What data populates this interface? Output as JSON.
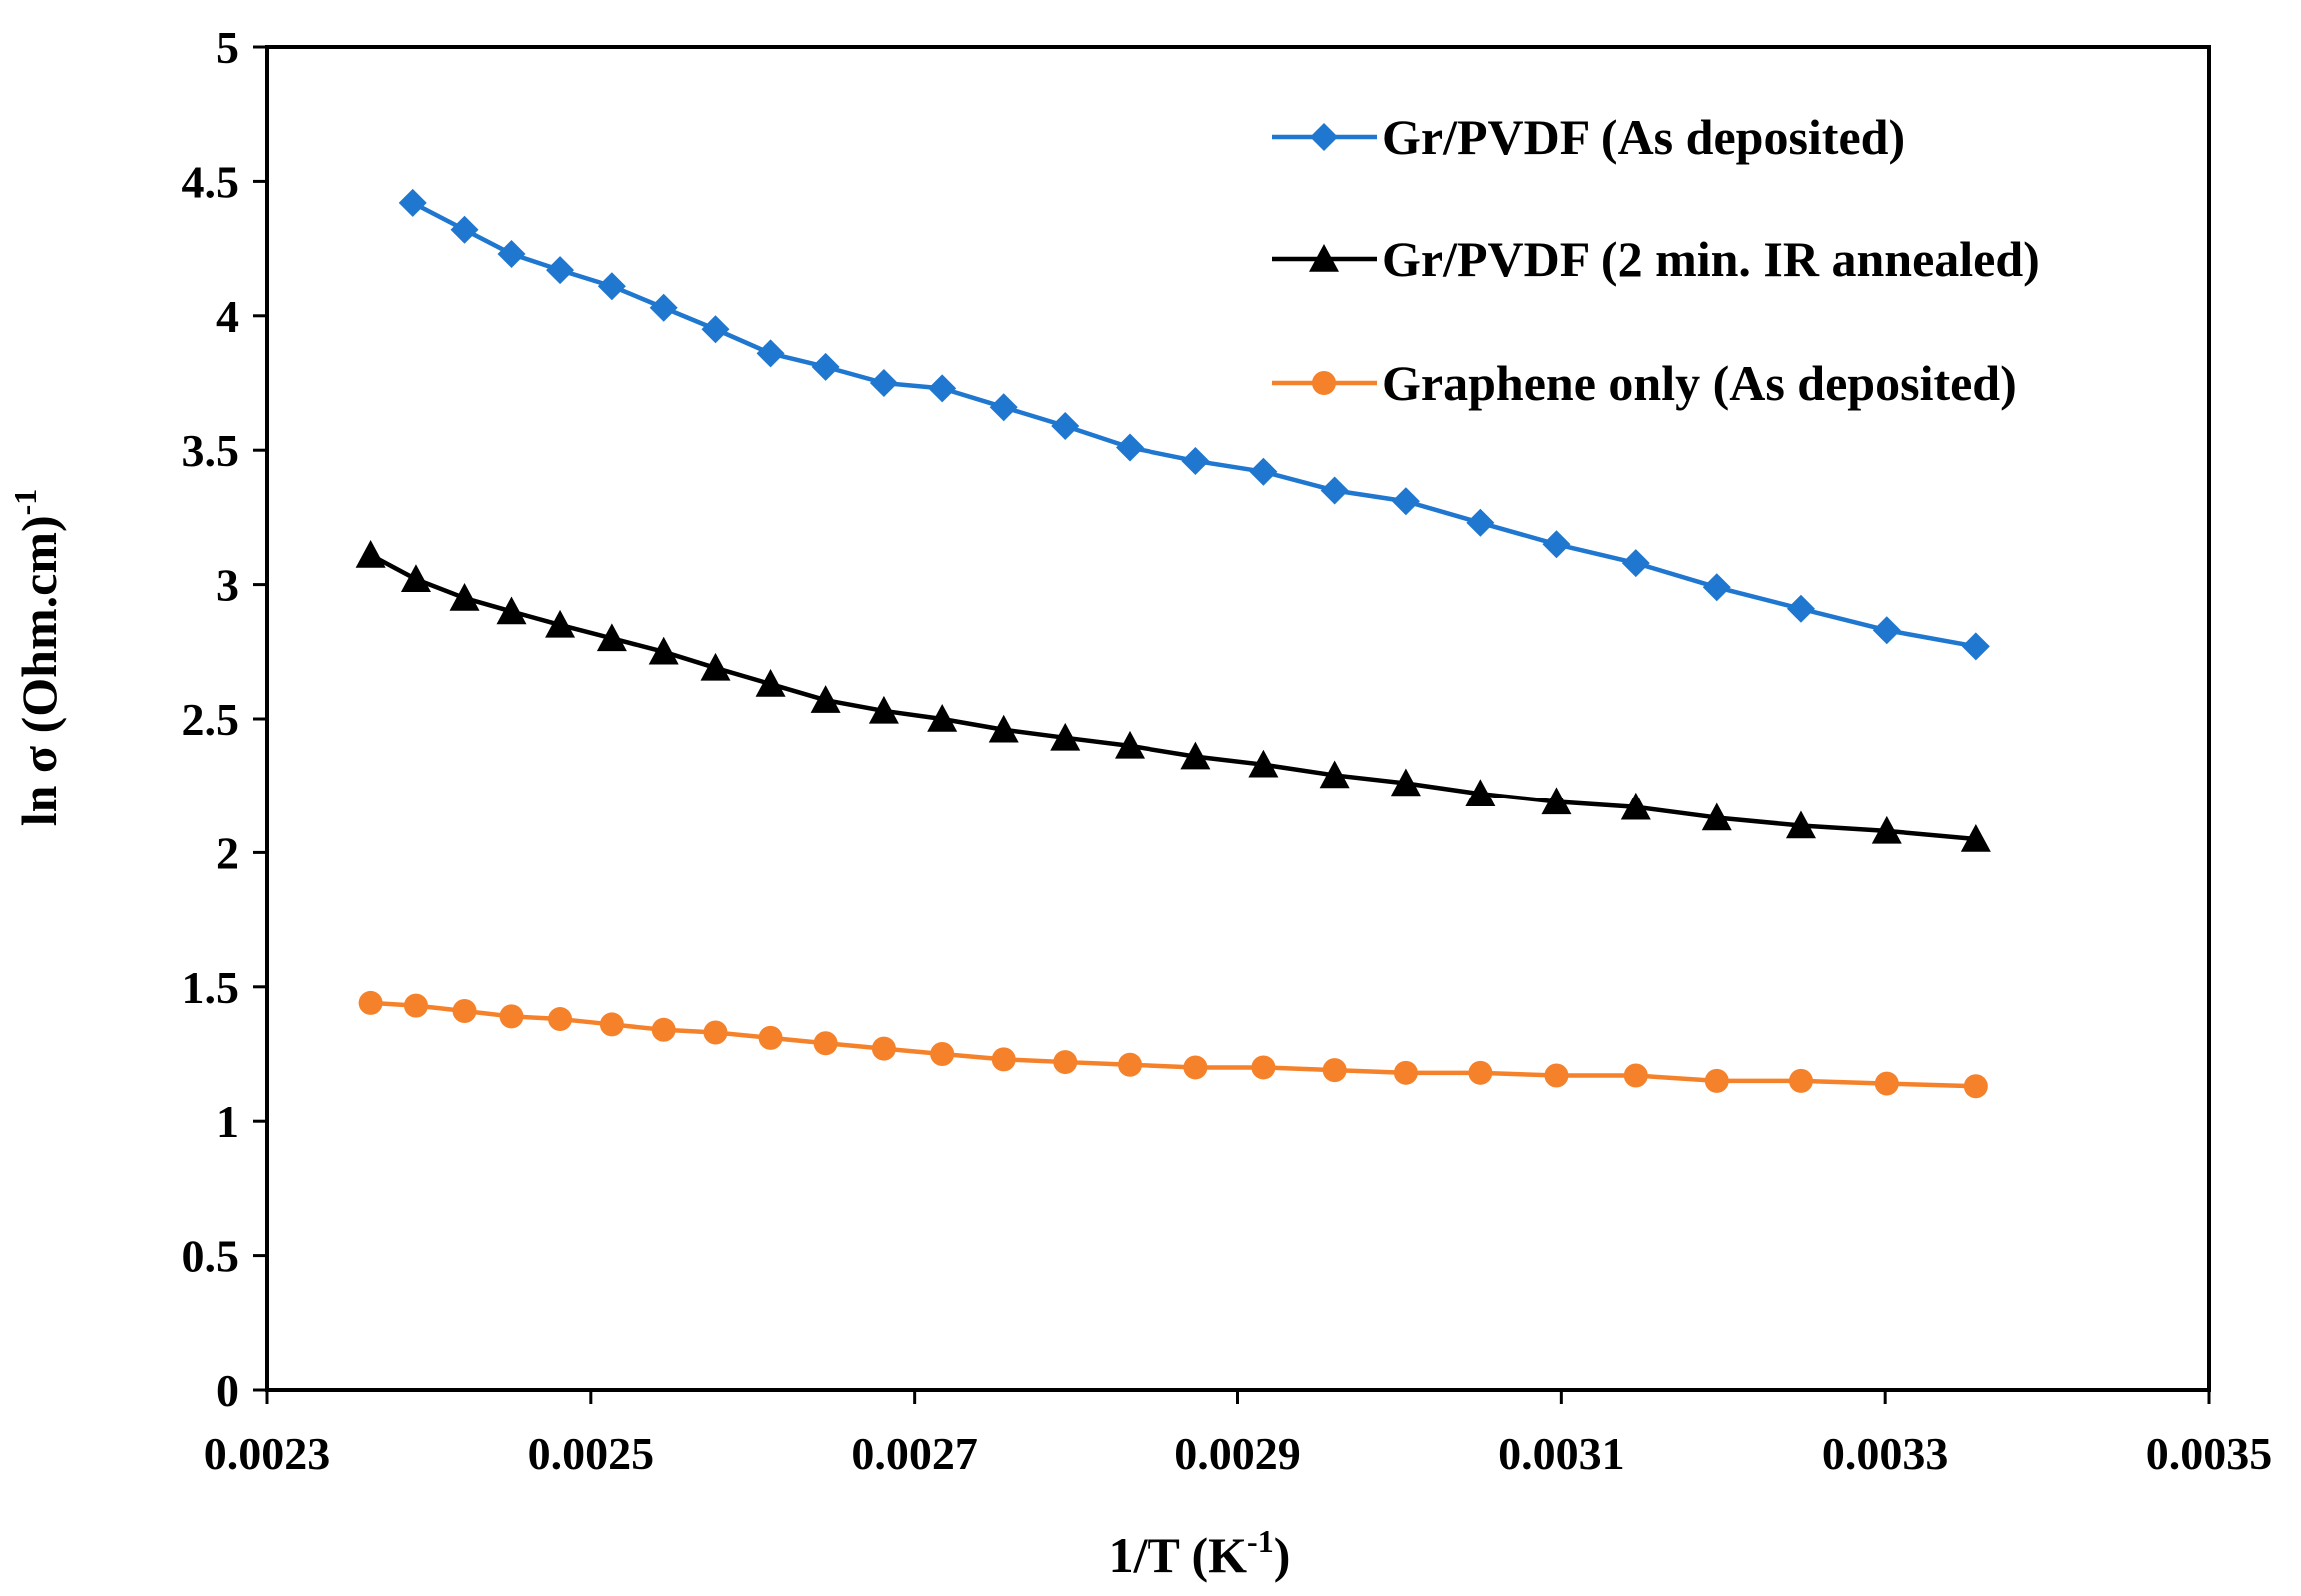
{
  "chart_data": {
    "type": "line",
    "title": "",
    "xlabel": {
      "main": "1/T (K",
      "sup": "-1",
      "tail": ")"
    },
    "ylabel": {
      "main": "ln σ (Ohm.cm)",
      "sup": "-1"
    },
    "xlim": [
      0.0023,
      0.0035
    ],
    "ylim": [
      0,
      5
    ],
    "xticks": [
      0.0023,
      0.0025,
      0.0027,
      0.0029,
      0.0031,
      0.0033,
      0.0035
    ],
    "xtick_labels": [
      "0.0023",
      "0.0025",
      "0.0027",
      "0.0029",
      "0.0031",
      "0.0033",
      "0.0035"
    ],
    "yticks": [
      0,
      0.5,
      1,
      1.5,
      2,
      2.5,
      3,
      3.5,
      4,
      4.5,
      5
    ],
    "ytick_labels": [
      "0",
      "0.5",
      "1",
      "1.5",
      "2",
      "2.5",
      "3",
      "3.5",
      "4",
      "4.5",
      "5"
    ],
    "grid": false,
    "legend_position": "top-right",
    "series": [
      {
        "name": "Gr/PVDF (As deposited)",
        "color": "#1f77d0",
        "marker": "diamond",
        "x": [
          0.00239,
          0.002422,
          0.002451,
          0.002481,
          0.002513,
          0.002545,
          0.002577,
          0.002611,
          0.002645,
          0.002681,
          0.002717,
          0.002755,
          0.002793,
          0.002833,
          0.002874,
          0.002916,
          0.00296,
          0.003004,
          0.00305,
          0.003097,
          0.003146,
          0.003196,
          0.003248,
          0.003301,
          0.003356
        ],
        "y": [
          4.42,
          4.32,
          4.23,
          4.17,
          4.11,
          4.03,
          3.95,
          3.86,
          3.81,
          3.75,
          3.73,
          3.66,
          3.59,
          3.51,
          3.46,
          3.42,
          3.35,
          3.31,
          3.23,
          3.15,
          3.08,
          2.99,
          2.91,
          2.83,
          2.77
        ]
      },
      {
        "name": "Gr/PVDF (2 min. IR annealed)",
        "color": "#000000",
        "marker": "triangle",
        "x": [
          0.002364,
          0.002392,
          0.002422,
          0.002451,
          0.002481,
          0.002513,
          0.002545,
          0.002577,
          0.002611,
          0.002645,
          0.002681,
          0.002717,
          0.002755,
          0.002793,
          0.002833,
          0.002874,
          0.002916,
          0.00296,
          0.003004,
          0.00305,
          0.003097,
          0.003146,
          0.003196,
          0.003248,
          0.003301,
          0.003356
        ],
        "y": [
          3.11,
          3.02,
          2.95,
          2.9,
          2.85,
          2.8,
          2.75,
          2.69,
          2.63,
          2.57,
          2.53,
          2.5,
          2.46,
          2.43,
          2.4,
          2.36,
          2.33,
          2.29,
          2.26,
          2.22,
          2.19,
          2.17,
          2.13,
          2.1,
          2.08,
          2.05
        ]
      },
      {
        "name": "Graphene only (As deposited)",
        "color": "#f5822a",
        "marker": "circle",
        "x": [
          0.002364,
          0.002392,
          0.002422,
          0.002451,
          0.002481,
          0.002513,
          0.002545,
          0.002577,
          0.002611,
          0.002645,
          0.002681,
          0.002717,
          0.002755,
          0.002793,
          0.002833,
          0.002874,
          0.002916,
          0.00296,
          0.003004,
          0.00305,
          0.003097,
          0.003146,
          0.003196,
          0.003248,
          0.003301,
          0.003356
        ],
        "y": [
          1.44,
          1.43,
          1.41,
          1.39,
          1.38,
          1.36,
          1.34,
          1.33,
          1.31,
          1.29,
          1.27,
          1.25,
          1.23,
          1.22,
          1.21,
          1.2,
          1.2,
          1.19,
          1.18,
          1.18,
          1.17,
          1.17,
          1.15,
          1.15,
          1.14,
          1.13
        ]
      }
    ]
  }
}
